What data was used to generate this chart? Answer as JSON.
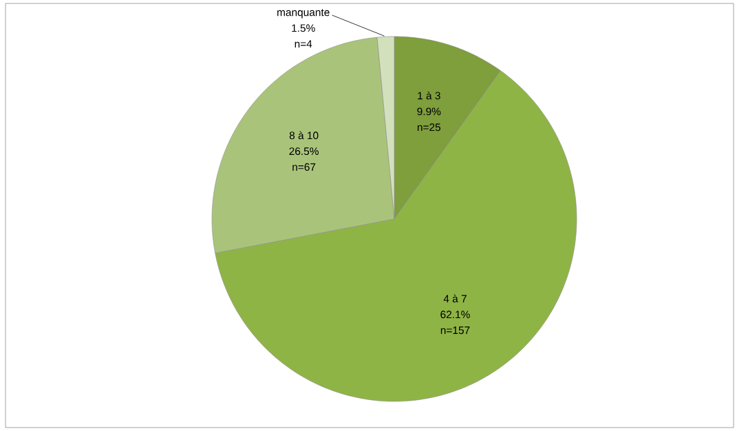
{
  "chart_data": {
    "type": "pie",
    "categories": [
      "1 à 3",
      "4 à 7",
      "8 à 10",
      "manquante"
    ],
    "values": [
      9.9,
      62.1,
      26.5,
      1.5
    ],
    "value_labels": [
      "9.9%",
      "62.1%",
      "26.5%",
      "1.5%"
    ],
    "annotations": [
      "n=25",
      "n=157",
      "n=67",
      "n=4"
    ],
    "colors": [
      "#7f9e3c",
      "#8fb446",
      "#a9c47a",
      "#d3e0bc"
    ]
  }
}
